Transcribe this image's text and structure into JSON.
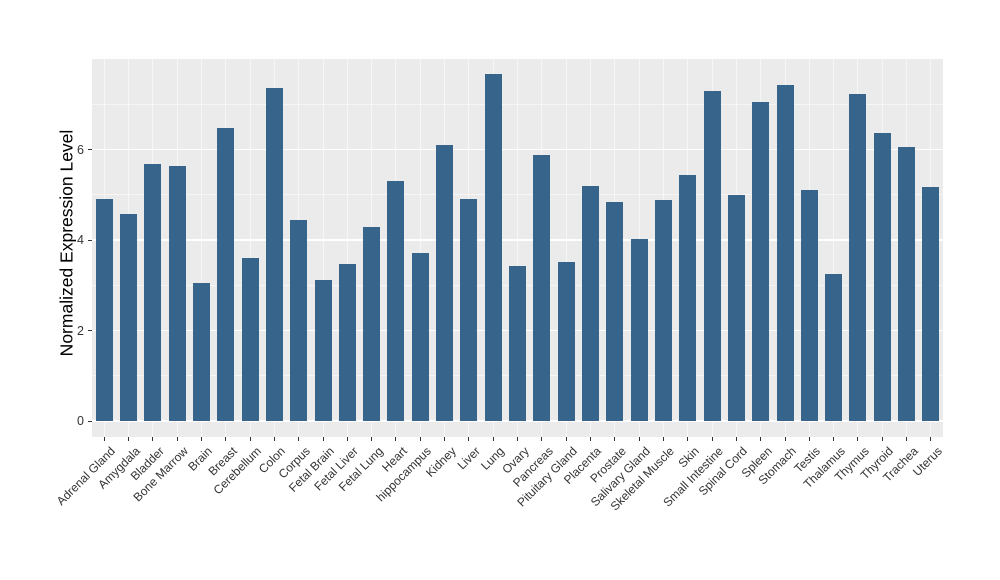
{
  "chart_data": {
    "type": "bar",
    "title": "",
    "xlabel": "",
    "ylabel": "Normalized Expression Level",
    "ylim": [
      0,
      8
    ],
    "yticks": [
      0,
      2,
      4,
      6
    ],
    "minor_ticks": [
      1,
      3,
      5,
      7
    ],
    "grid": true,
    "legend_position": "none",
    "categories": [
      "Adrenal Gland",
      "Amygdala",
      "Bladder",
      "Bone Marrow",
      "Brain",
      "Breast",
      "Cerebellum",
      "Colon",
      "Corpus",
      "Fetal Brain",
      "Fetal Liver",
      "Fetal Lung",
      "Heart",
      "hippocampus",
      "Kidney",
      "Liver",
      "Lung",
      "Ovary",
      "Pancreas",
      "Pituitary Gland",
      "Placenta",
      "Prostate",
      "Salivary Gland",
      "Skeletal Muscle",
      "Skin",
      "Small Intestine",
      "Spinal Cord",
      "Spleen",
      "Stomach",
      "Testis",
      "Thalamus",
      "Thymus",
      "Thyroid",
      "Trachea",
      "Uterus"
    ],
    "values": [
      4.9,
      4.58,
      5.68,
      5.64,
      3.05,
      6.47,
      3.6,
      7.37,
      4.45,
      3.12,
      3.47,
      4.28,
      5.3,
      3.71,
      6.11,
      4.9,
      7.66,
      3.43,
      5.87,
      3.52,
      5.19,
      4.83,
      4.03,
      4.88,
      5.43,
      7.29,
      4.99,
      7.04,
      7.43,
      5.11,
      3.26,
      7.23,
      6.37,
      6.06,
      5.17
    ],
    "colors": {
      "bar": "#36648B",
      "panel_background": "#EBEBEB",
      "grid_major": "#FFFFFF",
      "grid_minor": "#F6F6F6",
      "axis_text": "#333333",
      "axis_title": "#000000",
      "tick_mark": "#333333",
      "figure_background": "#FFFFFF"
    }
  }
}
